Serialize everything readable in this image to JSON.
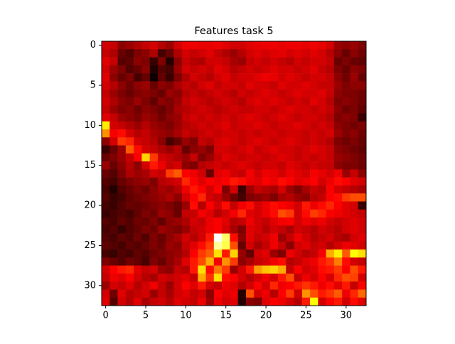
{
  "chart_data": {
    "type": "heatmap",
    "title": "Features task 5",
    "colormap": "hot",
    "clim": [
      0,
      100
    ],
    "xlim": [
      -0.5,
      32.5
    ],
    "ylim": [
      32.5,
      -0.5
    ],
    "xticks": [
      0,
      5,
      10,
      15,
      20,
      25,
      30
    ],
    "yticks": [
      0,
      5,
      10,
      15,
      20,
      25,
      30
    ],
    "z": [
      [
        30,
        28,
        20,
        22,
        25,
        28,
        30,
        26,
        22,
        30,
        34,
        34,
        33,
        33,
        34,
        32,
        30,
        30,
        32,
        33,
        34,
        34,
        33,
        34,
        34,
        33,
        34,
        33,
        30,
        22,
        20,
        22,
        18
      ],
      [
        28,
        25,
        15,
        12,
        18,
        20,
        25,
        10,
        15,
        25,
        30,
        28,
        30,
        32,
        28,
        25,
        22,
        26,
        30,
        32,
        30,
        32,
        33,
        30,
        32,
        30,
        32,
        30,
        26,
        20,
        15,
        20,
        16
      ],
      [
        32,
        28,
        12,
        14,
        20,
        18,
        8,
        18,
        5,
        20,
        28,
        26,
        25,
        30,
        30,
        28,
        24,
        22,
        28,
        30,
        28,
        30,
        28,
        26,
        30,
        28,
        30,
        30,
        28,
        15,
        18,
        15,
        14
      ],
      [
        30,
        22,
        18,
        12,
        15,
        20,
        5,
        12,
        10,
        22,
        30,
        28,
        30,
        28,
        32,
        30,
        26,
        28,
        30,
        28,
        30,
        32,
        30,
        30,
        28,
        30,
        32,
        28,
        26,
        18,
        15,
        20,
        18
      ],
      [
        32,
        20,
        15,
        18,
        10,
        15,
        2,
        14,
        8,
        18,
        25,
        30,
        28,
        26,
        30,
        32,
        28,
        30,
        30,
        32,
        34,
        33,
        30,
        32,
        30,
        28,
        30,
        30,
        28,
        20,
        16,
        22,
        15
      ],
      [
        30,
        26,
        20,
        16,
        20,
        22,
        15,
        20,
        18,
        24,
        28,
        26,
        30,
        32,
        28,
        30,
        30,
        28,
        32,
        30,
        30,
        28,
        32,
        30,
        30,
        32,
        30,
        28,
        28,
        22,
        18,
        20,
        20
      ],
      [
        28,
        22,
        18,
        15,
        18,
        20,
        18,
        15,
        22,
        20,
        26,
        28,
        26,
        28,
        30,
        28,
        26,
        30,
        28,
        30,
        32,
        30,
        28,
        30,
        32,
        30,
        30,
        32,
        28,
        20,
        18,
        18,
        16
      ],
      [
        30,
        25,
        20,
        18,
        22,
        18,
        14,
        20,
        18,
        22,
        28,
        30,
        28,
        26,
        28,
        30,
        28,
        26,
        30,
        32,
        30,
        32,
        30,
        28,
        30,
        28,
        32,
        30,
        26,
        18,
        20,
        18,
        16
      ],
      [
        28,
        22,
        18,
        20,
        16,
        20,
        18,
        15,
        18,
        24,
        26,
        28,
        30,
        28,
        26,
        28,
        30,
        28,
        28,
        30,
        30,
        28,
        30,
        32,
        30,
        30,
        28,
        30,
        28,
        20,
        16,
        18,
        14
      ],
      [
        32,
        28,
        22,
        20,
        18,
        22,
        20,
        16,
        20,
        22,
        28,
        30,
        28,
        30,
        28,
        30,
        28,
        30,
        32,
        30,
        28,
        30,
        32,
        30,
        28,
        30,
        30,
        28,
        26,
        18,
        20,
        18,
        8
      ],
      [
        72,
        30,
        28,
        25,
        22,
        26,
        22,
        20,
        18,
        22,
        26,
        28,
        30,
        28,
        30,
        32,
        28,
        30,
        30,
        32,
        30,
        28,
        30,
        30,
        32,
        30,
        28,
        30,
        28,
        20,
        18,
        16,
        18
      ],
      [
        58,
        35,
        38,
        30,
        26,
        28,
        24,
        22,
        20,
        24,
        28,
        26,
        28,
        30,
        28,
        30,
        30,
        28,
        30,
        28,
        30,
        30,
        28,
        30,
        30,
        28,
        30,
        28,
        30,
        22,
        18,
        20,
        16
      ],
      [
        20,
        30,
        45,
        42,
        30,
        28,
        26,
        20,
        10,
        15,
        22,
        18,
        28,
        26,
        30,
        32,
        30,
        28,
        30,
        32,
        30,
        28,
        30,
        32,
        30,
        28,
        30,
        28,
        26,
        18,
        16,
        18,
        15
      ],
      [
        8,
        15,
        22,
        50,
        38,
        30,
        28,
        25,
        22,
        26,
        15,
        20,
        22,
        18,
        30,
        30,
        28,
        30,
        32,
        28,
        30,
        32,
        30,
        30,
        28,
        30,
        32,
        30,
        28,
        20,
        18,
        16,
        14
      ],
      [
        15,
        18,
        22,
        28,
        36,
        68,
        45,
        30,
        28,
        25,
        22,
        28,
        18,
        22,
        28,
        32,
        30,
        28,
        30,
        30,
        28,
        30,
        32,
        30,
        28,
        30,
        28,
        30,
        28,
        22,
        20,
        18,
        16
      ],
      [
        22,
        15,
        20,
        26,
        20,
        30,
        40,
        34,
        28,
        30,
        20,
        18,
        26,
        28,
        30,
        28,
        30,
        32,
        30,
        28,
        30,
        30,
        28,
        32,
        30,
        28,
        30,
        28,
        28,
        20,
        18,
        18,
        16
      ],
      [
        15,
        12,
        18,
        25,
        22,
        24,
        30,
        28,
        45,
        50,
        36,
        34,
        30,
        15,
        32,
        34,
        30,
        28,
        35,
        30,
        34,
        33,
        30,
        34,
        32,
        30,
        35,
        33,
        30,
        34,
        22,
        28,
        20
      ],
      [
        12,
        10,
        15,
        18,
        20,
        22,
        18,
        26,
        28,
        30,
        42,
        36,
        32,
        36,
        34,
        36,
        40,
        38,
        34,
        32,
        36,
        34,
        38,
        36,
        32,
        34,
        36,
        30,
        34,
        38,
        36,
        32,
        30
      ],
      [
        10,
        5,
        12,
        15,
        18,
        16,
        20,
        24,
        22,
        26,
        34,
        40,
        36,
        30,
        36,
        18,
        30,
        8,
        22,
        28,
        26,
        24,
        30,
        22,
        18,
        24,
        28,
        26,
        36,
        30,
        28,
        26,
        24
      ],
      [
        12,
        8,
        10,
        14,
        16,
        18,
        20,
        22,
        25,
        20,
        30,
        36,
        42,
        30,
        28,
        22,
        16,
        10,
        18,
        20,
        22,
        18,
        24,
        26,
        22,
        20,
        26,
        28,
        36,
        38,
        45,
        48,
        48
      ],
      [
        10,
        8,
        12,
        15,
        14,
        16,
        18,
        20,
        18,
        15,
        22,
        38,
        26,
        36,
        30,
        38,
        28,
        35,
        38,
        30,
        34,
        38,
        36,
        34,
        30,
        40,
        34,
        38,
        42,
        36,
        32,
        30,
        8
      ],
      [
        8,
        10,
        12,
        10,
        14,
        18,
        16,
        22,
        20,
        15,
        28,
        28,
        35,
        32,
        26,
        30,
        35,
        42,
        32,
        30,
        34,
        38,
        48,
        45,
        30,
        38,
        45,
        42,
        36,
        34,
        32,
        30,
        28
      ],
      [
        12,
        10,
        14,
        12,
        16,
        15,
        18,
        14,
        20,
        22,
        25,
        30,
        28,
        34,
        36,
        32,
        26,
        28,
        34,
        30,
        28,
        32,
        35,
        36,
        30,
        34,
        32,
        34,
        30,
        28,
        30,
        32,
        30
      ],
      [
        10,
        12,
        8,
        12,
        14,
        18,
        16,
        22,
        20,
        18,
        22,
        28,
        30,
        34,
        36,
        30,
        24,
        18,
        32,
        30,
        26,
        30,
        28,
        24,
        30,
        28,
        26,
        30,
        28,
        26,
        30,
        32,
        30
      ],
      [
        12,
        10,
        14,
        12,
        16,
        12,
        18,
        15,
        20,
        24,
        30,
        26,
        30,
        40,
        100,
        85,
        38,
        20,
        32,
        28,
        30,
        34,
        22,
        28,
        34,
        30,
        26,
        28,
        30,
        26,
        24,
        30,
        32
      ],
      [
        14,
        12,
        10,
        14,
        12,
        15,
        18,
        16,
        22,
        20,
        28,
        32,
        38,
        45,
        90,
        82,
        48,
        15,
        30,
        24,
        28,
        34,
        28,
        20,
        30,
        32,
        28,
        30,
        26,
        30,
        34,
        32,
        30
      ],
      [
        10,
        8,
        12,
        10,
        14,
        12,
        16,
        18,
        20,
        22,
        26,
        36,
        45,
        50,
        70,
        40,
        68,
        22,
        14,
        30,
        32,
        22,
        18,
        34,
        30,
        26,
        28,
        35,
        62,
        72,
        50,
        75,
        70
      ],
      [
        18,
        15,
        12,
        16,
        14,
        10,
        18,
        15,
        20,
        24,
        32,
        40,
        48,
        62,
        35,
        58,
        45,
        20,
        24,
        28,
        30,
        35,
        38,
        26,
        28,
        32,
        34,
        40,
        44,
        55,
        38,
        30,
        28
      ],
      [
        30,
        36,
        40,
        42,
        32,
        28,
        30,
        22,
        20,
        28,
        26,
        40,
        70,
        38,
        54,
        45,
        22,
        30,
        40,
        60,
        66,
        68,
        62,
        28,
        36,
        30,
        32,
        38,
        40,
        45,
        36,
        48,
        40
      ],
      [
        28,
        34,
        32,
        36,
        30,
        26,
        24,
        30,
        28,
        30,
        32,
        28,
        62,
        44,
        70,
        38,
        36,
        30,
        26,
        30,
        34,
        30,
        40,
        48,
        28,
        34,
        30,
        36,
        30,
        42,
        48,
        46,
        30
      ],
      [
        22,
        30,
        28,
        32,
        26,
        30,
        34,
        28,
        22,
        30,
        36,
        32,
        40,
        30,
        28,
        34,
        32,
        26,
        30,
        36,
        30,
        42,
        34,
        36,
        40,
        44,
        40,
        34,
        38,
        32,
        40,
        28,
        36
      ],
      [
        30,
        16,
        32,
        26,
        28,
        30,
        22,
        28,
        24,
        30,
        32,
        28,
        30,
        20,
        36,
        32,
        34,
        5,
        48,
        30,
        34,
        26,
        36,
        45,
        30,
        58,
        48,
        40,
        44,
        50,
        34,
        42,
        52
      ],
      [
        32,
        12,
        30,
        26,
        32,
        24,
        28,
        30,
        26,
        32,
        30,
        28,
        34,
        22,
        34,
        30,
        32,
        5,
        20,
        18,
        32,
        36,
        34,
        30,
        26,
        40,
        75,
        30,
        36,
        40,
        30,
        38,
        32
      ]
    ]
  }
}
